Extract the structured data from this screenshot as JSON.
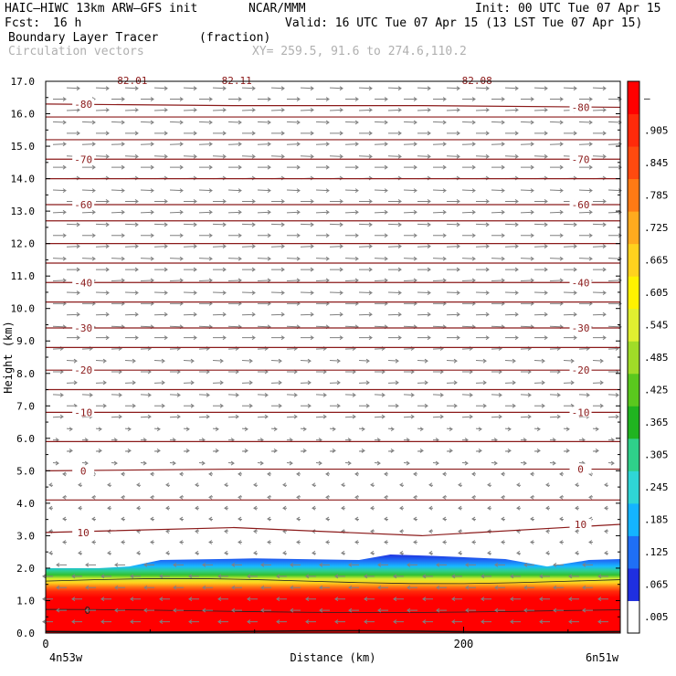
{
  "header": {
    "model": "HAIC–HIWC 13km ARW–GFS init",
    "org": "NCAR/MMM",
    "init": "Init: 00 UTC Tue 07 Apr 15",
    "fcst_label": "Fcst:",
    "fcst_value": "16 h",
    "valid": "Valid: 16 UTC Tue 07 Apr 15 (13 LST Tue 07 Apr 15)",
    "field": "Boundary Layer Tracer",
    "field_units": "(fraction)",
    "vectors": "Circulation vectors",
    "xy": "XY= 259.5, 91.6 to 274.6,110.2"
  },
  "chart_data": {
    "type": "heatmap",
    "title": "Boundary Layer Tracer",
    "xlabel": "Distance (km)",
    "ylabel": "Height (km)",
    "xlim": [
      0,
      275
    ],
    "ylim": [
      0,
      17
    ],
    "x_ticks": [
      {
        "value": 0,
        "label": "0"
      },
      {
        "value": 200,
        "label": "200"
      }
    ],
    "x_end_labels": {
      "left": "4n53w",
      "right": "6n51w"
    },
    "y_ticks": [
      "0.0",
      "1.0",
      "2.0",
      "3.0",
      "4.0",
      "5.0",
      "6.0",
      "7.0",
      "8.0",
      "9.0",
      "10.0",
      "11.0",
      "12.0",
      "13.0",
      "14.0",
      "15.0",
      "16.0",
      "17.0"
    ],
    "colorbar": {
      "labels": [
        ".005",
        ".065",
        ".125",
        ".185",
        ".245",
        ".305",
        ".365",
        ".425",
        ".485",
        ".545",
        ".605",
        ".665",
        ".725",
        ".785",
        ".845",
        ".905",
        "–"
      ],
      "colors": [
        "#ffffff",
        "#1f2fe0",
        "#1f6ff5",
        "#14b4ff",
        "#2fd6d6",
        "#2fd08a",
        "#20b420",
        "#5ac81e",
        "#a0dc28",
        "#e0ef30",
        "#fff200",
        "#ffd21e",
        "#ffaa1e",
        "#ff7a14",
        "#ff4a0f",
        "#ff2a0a",
        "#ff0000"
      ]
    },
    "tracer_top_km": [
      [
        0,
        2.0
      ],
      [
        25,
        2.0
      ],
      [
        40,
        2.05
      ],
      [
        55,
        2.25
      ],
      [
        100,
        2.3
      ],
      [
        150,
        2.25
      ],
      [
        165,
        2.42
      ],
      [
        185,
        2.38
      ],
      [
        220,
        2.28
      ],
      [
        240,
        2.05
      ],
      [
        260,
        2.25
      ],
      [
        275,
        2.28
      ]
    ],
    "temperature_contours": [
      {
        "label": "-80",
        "y": [
          16.3,
          16.25,
          16.25,
          16.2
        ]
      },
      {
        "label": "-70",
        "y": [
          14.6,
          14.6,
          14.6,
          14.6
        ]
      },
      {
        "label": "-60",
        "y": [
          13.2,
          13.2,
          13.2,
          13.2
        ]
      },
      {
        "label": "-40",
        "y": [
          10.8,
          10.8,
          10.8,
          10.8
        ]
      },
      {
        "label": "-30",
        "y": [
          9.4,
          9.4,
          9.4,
          9.4
        ]
      },
      {
        "label": "-20",
        "y": [
          8.1,
          8.1,
          8.1,
          8.1
        ]
      },
      {
        "label": "-10",
        "y": [
          6.8,
          6.8,
          6.8,
          6.8
        ]
      },
      {
        "label": "0",
        "y": [
          5.0,
          5.05,
          5.05,
          5.05
        ]
      },
      {
        "label": "10",
        "y": [
          3.1,
          3.25,
          3.0,
          3.35
        ]
      }
    ],
    "unlabeled_contours_km": [
      15.2,
      15.9,
      14.0,
      12.7,
      12.0,
      11.4,
      10.2,
      8.8,
      7.5,
      5.9,
      4.1
    ],
    "top_labels": [
      "-82.01",
      "-82.11",
      "-82.08"
    ]
  }
}
